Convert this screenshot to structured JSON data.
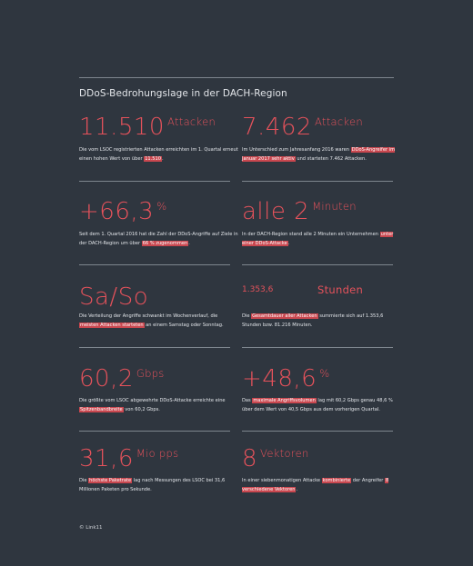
{
  "title": "DDoS-Bedrohungslage in der DACH-Region",
  "footer": "© Link11",
  "stats": [
    {
      "value": "11.510",
      "unit": "Attacken",
      "desc_parts": [
        "Die vom LSOC registrierten Attacken erreichten im 1. Quartal erneut einen hohen Wert von über ",
        "11.510",
        "."
      ]
    },
    {
      "value": "7.462",
      "unit": "Attacken",
      "desc_parts": [
        "Im Unterschied zum Jahresanfang 2016 waren ",
        "DDoS-Angreifer im Januar 2017 sehr aktiv",
        " und starteten 7.462 Attacken."
      ]
    },
    {
      "value": "+66,3",
      "unit": "%",
      "desc_parts": [
        "Seit dem 1. Quartal 2016 hat die Zahl der DDoS-Angriffe auf Ziele in der DACH-Region um über ",
        "66 % zugenommen",
        "."
      ]
    },
    {
      "value": "alle 2",
      "unit": "Minuten",
      "desc_parts": [
        "In der DACH-Region stand alle 2 Minuten ein Unternehmen ",
        "unter einer DDoS-Attacke",
        "."
      ]
    },
    {
      "value": "Sa/So",
      "unit": "",
      "desc_parts": [
        "Die Verteilung der Angriffe schwankt im Wochenverlauf, die ",
        "meisten Attacken starteten",
        " an einem Samstag oder Sonntag."
      ]
    },
    {
      "value": "1.353,6",
      "unit": "Stunden",
      "desc_parts": [
        "Die ",
        "Gesamtdauer aller Attacken",
        " summierte sich auf 1.353,6 Stunden bzw. 81.216 Minuten."
      ]
    },
    {
      "value": "60,2",
      "unit": "Gbps",
      "desc_parts": [
        "Die größte vom LSOC abgewehrte DDoS-Attacke erreichte eine ",
        "Spitzenbandbreite",
        " von 60,2 Gbps."
      ]
    },
    {
      "value": "+48,6",
      "unit": "%",
      "desc_parts": [
        "Das ",
        "maximale Angriffsvolumen",
        " lag mit 60,2 Gbps genau 48,6 % über dem Wert von 40,5 Gbps aus dem vorherigen Quartal."
      ]
    },
    {
      "value": "31,6",
      "unit": "Mio pps",
      "desc_parts": [
        "Die ",
        "höchste Paketrate",
        " lag nach Messungen des LSOC bei 31,6 Millionen Paketen pro Sekunde."
      ]
    },
    {
      "value": "8",
      "unit": "Vektoren",
      "desc_parts": [
        "In einer siebenmonatigen Attacke ",
        "kombinierte",
        " der Angreifer ",
        "8 verschiedene Vektoren",
        "."
      ]
    }
  ]
}
